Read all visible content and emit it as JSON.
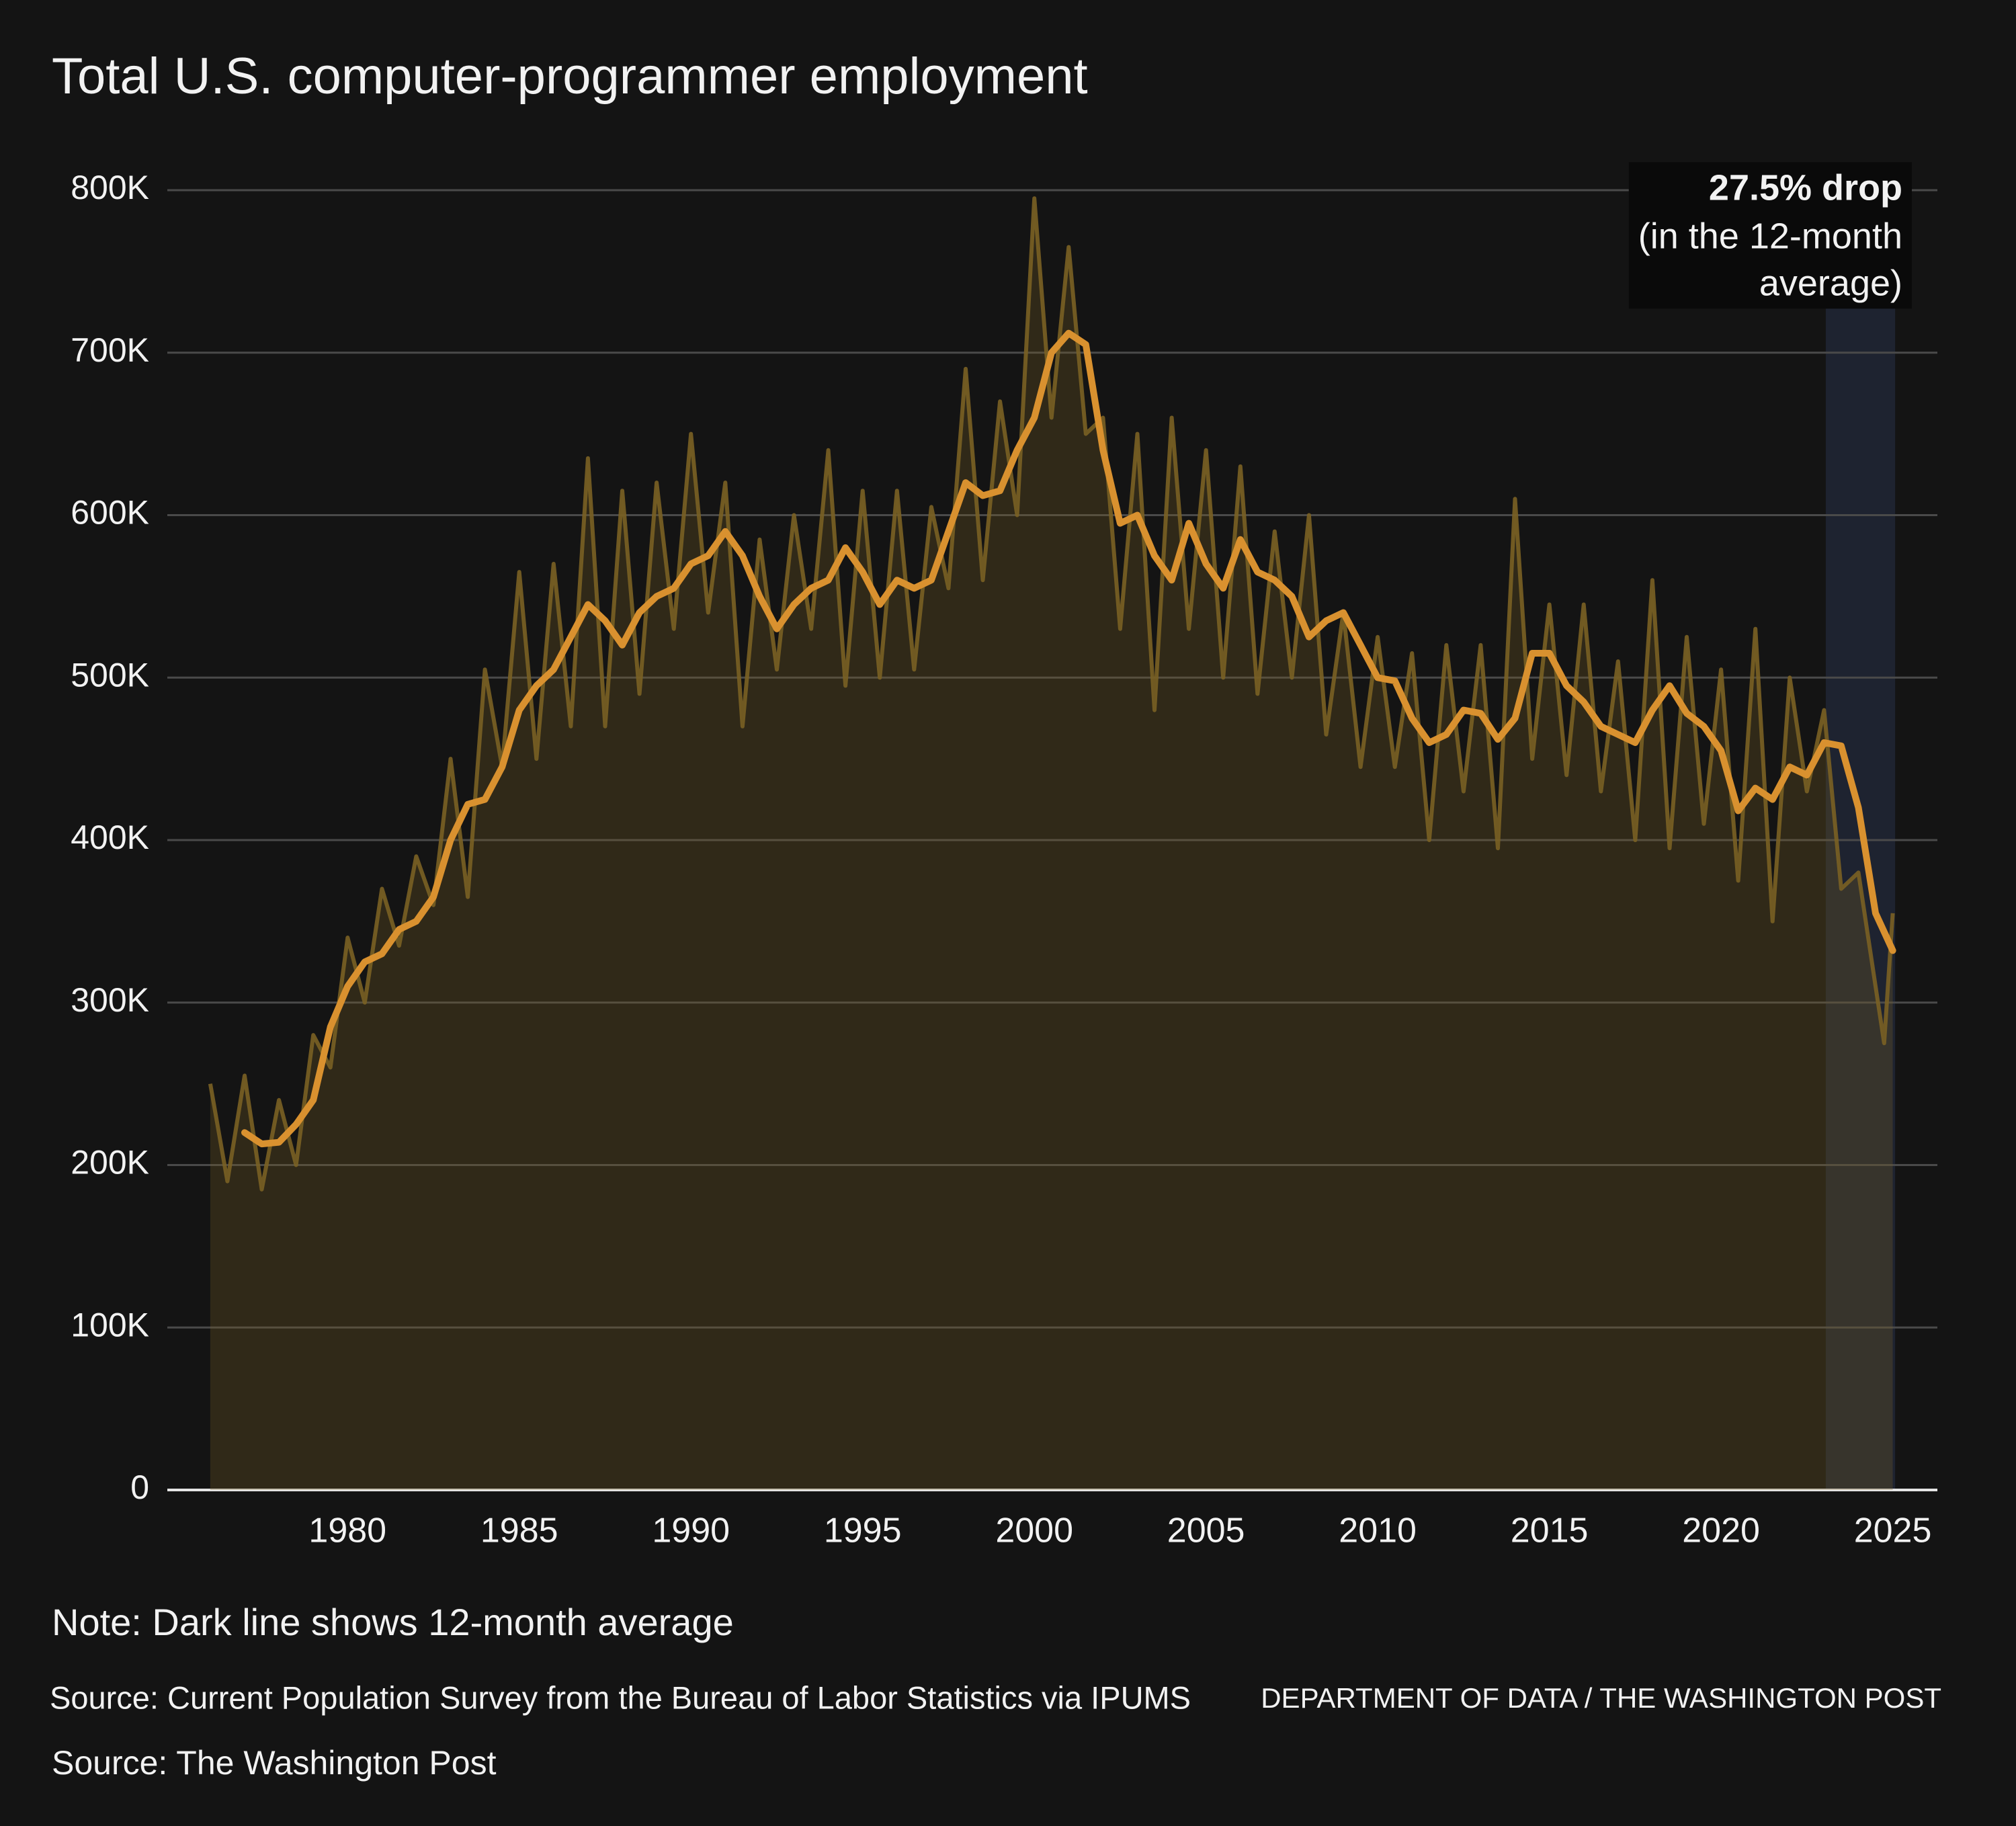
{
  "chart_data": {
    "type": "line",
    "title": "Total U.S. computer-programmer employment",
    "annotation": {
      "title": "27.5% drop",
      "lines": [
        "(in the 12-month",
        "average)"
      ]
    },
    "highlight_xlim": [
      2023.05,
      2025.07
    ],
    "note": "Note: Dark line shows 12-month average",
    "source": "Source: Current Population Survey from the Bureau of Labor Statistics via IPUMS",
    "credit": "DEPARTMENT OF DATA / THE WASHINGTON POST",
    "source2": "Source: The Washington Post",
    "xlim": [
      1974.75,
      2026.3
    ],
    "xticks": [
      1980,
      1985,
      1990,
      1995,
      2000,
      2005,
      2010,
      2015,
      2020,
      2025
    ],
    "ylim": [
      0,
      800000
    ],
    "yticks": [
      0,
      {
        "value": 100000,
        "label": "100K"
      },
      {
        "value": 200000,
        "label": "200K"
      },
      {
        "value": 300000,
        "label": "300K"
      },
      {
        "value": 400000,
        "label": "400K"
      },
      {
        "value": 500000,
        "label": "500K"
      },
      {
        "value": 600000,
        "label": "600K"
      },
      {
        "value": 700000,
        "label": "700K"
      },
      {
        "value": 800000,
        "label": "800K"
      }
    ],
    "grid": true,
    "series": [
      {
        "color": "#7a6124",
        "x": [
          1976,
          1976.5,
          1977,
          1977.5,
          1978,
          1978.5,
          1979,
          1979.5,
          1980,
          1980.5,
          1981,
          1981.5,
          1982,
          1982.5,
          1983,
          1983.5,
          1984,
          1984.5,
          1985,
          1985.5,
          1986,
          1986.5,
          1987,
          1987.5,
          1988,
          1988.5,
          1989,
          1989.5,
          1990,
          1990.5,
          1991,
          1991.5,
          1992,
          1992.5,
          1993,
          1993.5,
          1994,
          1994.5,
          1995,
          1995.5,
          1996,
          1996.5,
          1997,
          1997.5,
          1998,
          1998.5,
          1999,
          1999.5,
          2000,
          2000.5,
          2001,
          2001.5,
          2002,
          2002.5,
          2003,
          2003.5,
          2004,
          2004.5,
          2005,
          2005.5,
          2006,
          2006.5,
          2007,
          2007.5,
          2008,
          2008.5,
          2009,
          2009.5,
          2010,
          2010.5,
          2011,
          2011.5,
          2012,
          2012.5,
          2013,
          2013.5,
          2014,
          2014.5,
          2015,
          2015.5,
          2016,
          2016.5,
          2017,
          2017.5,
          2018,
          2018.5,
          2019,
          2019.5,
          2020,
          2020.5,
          2021,
          2021.5,
          2022,
          2022.5,
          2023,
          2023.5,
          2024,
          2024.5,
          2024.75,
          2025
        ],
        "values": [
          250000,
          190000,
          255000,
          185000,
          240000,
          200000,
          280000,
          260000,
          340000,
          300000,
          370000,
          335000,
          390000,
          360000,
          450000,
          365000,
          505000,
          445000,
          565000,
          450000,
          570000,
          470000,
          635000,
          470000,
          615000,
          490000,
          620000,
          530000,
          650000,
          540000,
          620000,
          470000,
          585000,
          505000,
          600000,
          530000,
          640000,
          495000,
          615000,
          500000,
          615000,
          505000,
          605000,
          555000,
          690000,
          560000,
          670000,
          600000,
          795000,
          660000,
          765000,
          650000,
          660000,
          530000,
          650000,
          480000,
          660000,
          530000,
          640000,
          500000,
          630000,
          490000,
          590000,
          500000,
          600000,
          465000,
          540000,
          445000,
          525000,
          445000,
          515000,
          400000,
          520000,
          430000,
          520000,
          395000,
          610000,
          450000,
          545000,
          440000,
          545000,
          430000,
          510000,
          400000,
          560000,
          395000,
          525000,
          410000,
          505000,
          375000,
          530000,
          350000,
          500000,
          430000,
          480000,
          370000,
          380000,
          310000,
          275000,
          355000
        ]
      },
      {
        "color": "#d9912f",
        "x": [
          1977,
          1977.5,
          1978,
          1978.5,
          1979,
          1979.5,
          1980,
          1980.5,
          1981,
          1981.5,
          1982,
          1982.5,
          1983,
          1983.5,
          1984,
          1984.5,
          1985,
          1985.5,
          1986,
          1986.5,
          1987,
          1987.5,
          1988,
          1988.5,
          1989,
          1989.5,
          1990,
          1990.5,
          1991,
          1991.5,
          1992,
          1992.5,
          1993,
          1993.5,
          1994,
          1994.5,
          1995,
          1995.5,
          1996,
          1996.5,
          1997,
          1997.5,
          1998,
          1998.5,
          1999,
          1999.5,
          2000,
          2000.5,
          2001,
          2001.5,
          2002,
          2002.5,
          2003,
          2003.5,
          2004,
          2004.5,
          2005,
          2005.5,
          2006,
          2006.5,
          2007,
          2007.5,
          2008,
          2008.5,
          2009,
          2009.5,
          2010,
          2010.5,
          2011,
          2011.5,
          2012,
          2012.5,
          2013,
          2013.5,
          2014,
          2014.5,
          2015,
          2015.5,
          2016,
          2016.5,
          2017,
          2017.5,
          2018,
          2018.5,
          2019,
          2019.5,
          2020,
          2020.5,
          2021,
          2021.5,
          2022,
          2022.5,
          2023,
          2023.5,
          2024,
          2024.5,
          2025
        ],
        "values": [
          220000,
          213000,
          214000,
          225000,
          240000,
          285000,
          310000,
          325000,
          330000,
          345000,
          350000,
          365000,
          400000,
          422000,
          425000,
          445000,
          480000,
          495000,
          505000,
          525000,
          545000,
          535000,
          520000,
          540000,
          550000,
          555000,
          570000,
          575000,
          590000,
          575000,
          550000,
          530000,
          545000,
          555000,
          560000,
          580000,
          565000,
          545000,
          560000,
          555000,
          560000,
          590000,
          620000,
          612000,
          615000,
          640000,
          660000,
          700000,
          712000,
          705000,
          640000,
          595000,
          600000,
          575000,
          560000,
          595000,
          570000,
          555000,
          585000,
          565000,
          560000,
          550000,
          525000,
          535000,
          540000,
          520000,
          500000,
          498000,
          475000,
          460000,
          465000,
          480000,
          478000,
          462000,
          475000,
          515000,
          515000,
          495000,
          485000,
          470000,
          465000,
          460000,
          480000,
          495000,
          478000,
          470000,
          455000,
          418000,
          432000,
          425000,
          445000,
          440000,
          460000,
          458000,
          420000,
          355000,
          332000
        ]
      }
    ]
  }
}
